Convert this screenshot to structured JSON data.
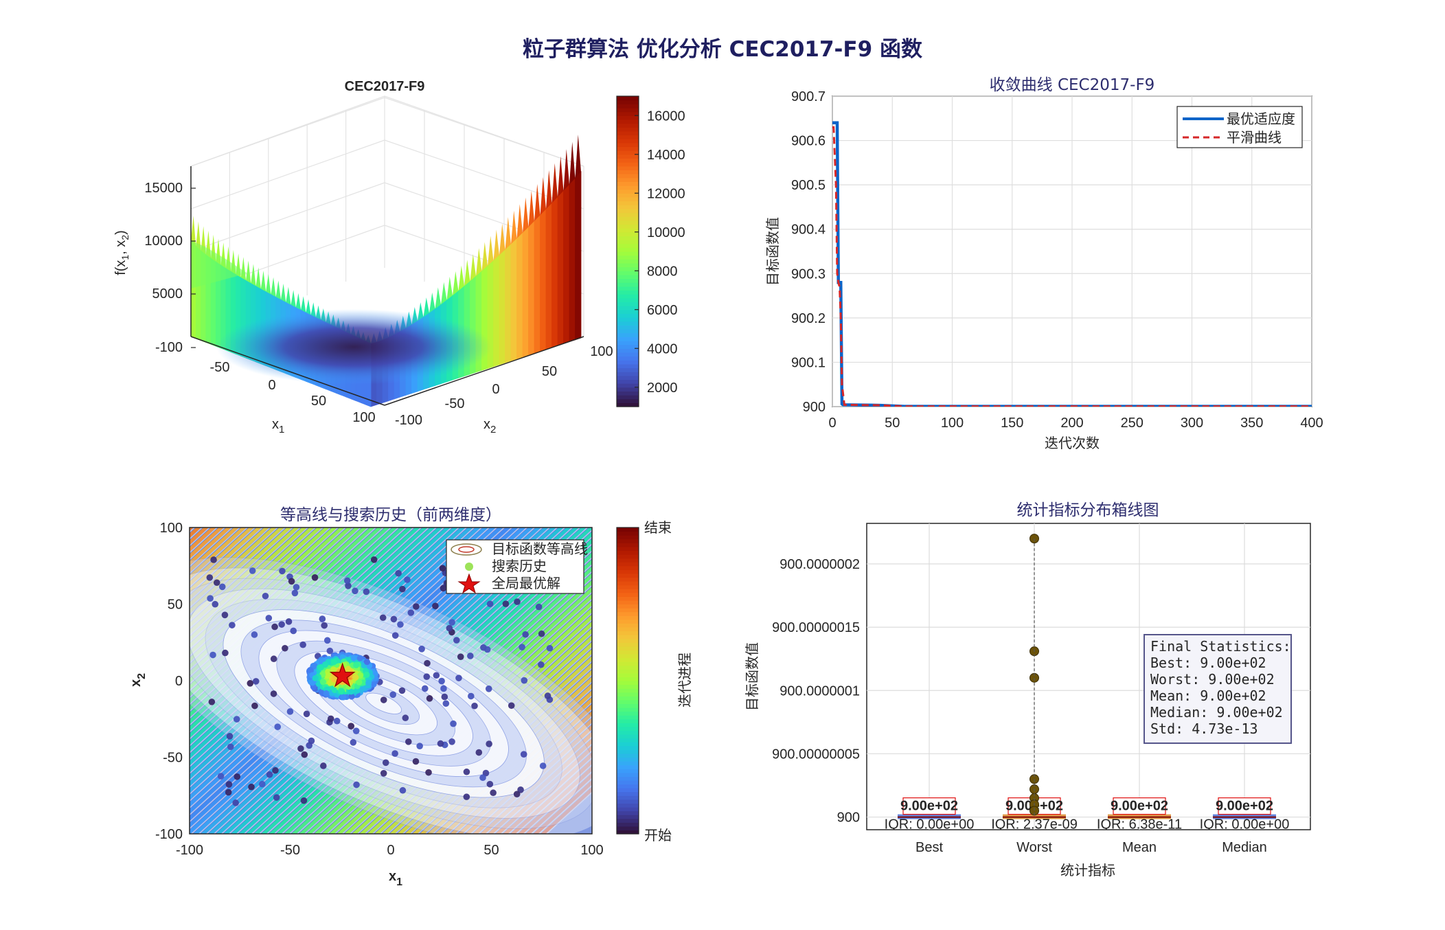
{
  "figure": {
    "title": "粒子群算法 优化分析 CEC2017-F9 函数"
  },
  "colormap": [
    "#30123b",
    "#4145ab",
    "#4675ed",
    "#39a2fc",
    "#1bcfd4",
    "#24eca6",
    "#61fc6c",
    "#a4fc3b",
    "#d1e834",
    "#f3c63a",
    "#fe9b2d",
    "#f36315",
    "#d93806",
    "#b11901",
    "#7a0402"
  ],
  "surface": {
    "title": "CEC2017-F9",
    "xlabel": "x1",
    "ylabel": "x2",
    "zlabel": "f(x1, x2)",
    "x_ticks": [
      "-50",
      "0",
      "50",
      "100"
    ],
    "y_ticks": [
      "-100",
      "-50",
      "0",
      "50",
      "100"
    ],
    "z_ticks": [
      "-100",
      "5000",
      "10000",
      "15000"
    ],
    "colorbar_ticks": [
      "2000",
      "4000",
      "6000",
      "8000",
      "10000",
      "12000",
      "14000",
      "16000"
    ],
    "colorbar_range": [
      1000,
      17000
    ]
  },
  "chart_data": [
    {
      "type": "line",
      "title": "收敛曲线 CEC2017-F9",
      "xlabel": "迭代次数",
      "ylabel": "目标函数值",
      "xlim": [
        0,
        400
      ],
      "ylim": [
        900,
        900.7
      ],
      "x_ticks": [
        "0",
        "50",
        "100",
        "150",
        "200",
        "250",
        "300",
        "350",
        "400"
      ],
      "y_ticks": [
        "900",
        "900.1",
        "900.2",
        "900.3",
        "900.4",
        "900.5",
        "900.6",
        "900.7"
      ],
      "grid": true,
      "legend_position": "top-right",
      "series": [
        {
          "name": "最优适应度",
          "color": "#0a64c8",
          "style": "solid",
          "x": [
            0,
            1,
            4,
            5,
            6,
            7,
            8,
            9,
            40,
            60,
            400
          ],
          "y": [
            900.64,
            900.64,
            900.64,
            900.28,
            900.28,
            900.28,
            900.006,
            900.004,
            900.003,
            900.0005,
            900.0005
          ]
        },
        {
          "name": "平滑曲线",
          "color": "#d62728",
          "style": "dashed",
          "x": [
            0,
            1,
            3,
            4,
            5,
            6,
            7,
            8,
            10,
            40,
            60,
            400
          ],
          "y": [
            900.63,
            900.63,
            900.5,
            900.3,
            900.28,
            900.27,
            900.2,
            900.05,
            900.004,
            900.003,
            900.0005,
            900.0005
          ]
        }
      ]
    },
    {
      "type": "scatter",
      "title": "等高线与搜索历史（前两维度）",
      "xlabel": "x1",
      "ylabel": "x2",
      "xlim": [
        -100,
        100
      ],
      "ylim": [
        -100,
        100
      ],
      "x_ticks": [
        "-100",
        "-50",
        "0",
        "50",
        "100"
      ],
      "y_ticks": [
        "-100",
        "-50",
        "0",
        "50",
        "100"
      ],
      "legend_position": "top-right",
      "legend": [
        "目标函数等高线",
        "搜索历史",
        "全局最优解"
      ],
      "colorbar_label": "迭代进程",
      "colorbar_top": "结束",
      "colorbar_bottom": "开始",
      "global_best": {
        "x": -24,
        "y": 3
      },
      "cluster_center": {
        "x": -24,
        "y": 3
      }
    },
    {
      "type": "box",
      "title": "统计指标分布箱线图",
      "xlabel": "统计指标",
      "ylabel": "目标函数值",
      "categories": [
        "Best",
        "Worst",
        "Mean",
        "Median"
      ],
      "ylim": [
        899.99999999,
        900.000000232
      ],
      "y_ticks": [
        {
          "value": 900.0,
          "label": "900"
        },
        {
          "value": 900.00000005,
          "label": "900.00000005"
        },
        {
          "value": 900.0000001,
          "label": "900.0000001"
        },
        {
          "value": 900.00000015,
          "label": "900.00000015"
        },
        {
          "value": 900.0000002,
          "label": "900.0000002"
        }
      ],
      "medians": [
        "9.00e+02",
        "9.00e+02",
        "9.00e+02",
        "9.00e+02"
      ],
      "iqr": [
        "IQR: 0.00e+00",
        "IQR: 2.37e-09",
        "IQR: 6.38e-11",
        "IQR: 0.00e+00"
      ],
      "box_colors": [
        "#4a6fd6",
        "#d98a2b",
        "#d98a2b",
        "#4a6fd6"
      ],
      "outliers": [
        {
          "category": "Worst",
          "values": [
            900.00000022,
            900.000000131,
            900.00000011,
            900.00000003,
            900.000000022,
            900.000000015,
            900.00000001,
            900.000000005
          ]
        }
      ],
      "stats_box": {
        "title": "Final Statistics:",
        "lines": [
          "Best: 9.00e+02",
          "Worst: 9.00e+02",
          "Mean: 9.00e+02",
          "Median: 9.00e+02",
          "Std: 4.73e-13"
        ]
      }
    }
  ]
}
